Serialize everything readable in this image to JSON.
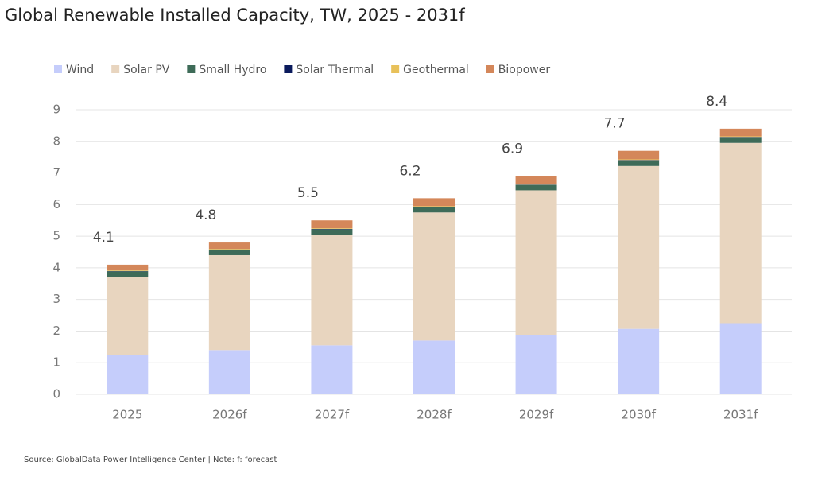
{
  "chart_data": {
    "type": "stacked-bar",
    "title": "Global Renewable Installed Capacity, TW, 2025 - 2031f",
    "source": "Source: GlobalData Power Intelligence Center | Note: f: forecast",
    "categories": [
      "2025",
      "2026f",
      "2027f",
      "2028f",
      "2029f",
      "2030f",
      "2031f"
    ],
    "series": [
      {
        "name": "Wind",
        "color": "#c5cdfb",
        "values": [
          1.25,
          1.4,
          1.55,
          1.7,
          1.88,
          2.07,
          2.25
        ]
      },
      {
        "name": "Solar PV",
        "color": "#e8d5bf",
        "values": [
          2.47,
          3.0,
          3.5,
          4.05,
          4.57,
          5.15,
          5.7
        ]
      },
      {
        "name": "Small Hydro",
        "color": "#3e6b58",
        "values": [
          0.17,
          0.17,
          0.17,
          0.17,
          0.17,
          0.18,
          0.18
        ]
      },
      {
        "name": "Solar Thermal",
        "color": "#0a1a5c",
        "values": [
          0.01,
          0.01,
          0.01,
          0.01,
          0.01,
          0.01,
          0.01
        ]
      },
      {
        "name": "Geothermal",
        "color": "#e8c15a",
        "values": [
          0.02,
          0.02,
          0.02,
          0.02,
          0.02,
          0.02,
          0.02
        ]
      },
      {
        "name": "Biopower",
        "color": "#d4875a",
        "values": [
          0.18,
          0.2,
          0.25,
          0.25,
          0.25,
          0.27,
          0.24
        ]
      }
    ],
    "totals": [
      4.1,
      4.8,
      5.5,
      6.2,
      6.9,
      7.7,
      8.4
    ],
    "ylim": [
      0,
      9
    ],
    "yticks": [
      0,
      1,
      2,
      3,
      4,
      5,
      6,
      7,
      8,
      9
    ],
    "grid": true
  }
}
